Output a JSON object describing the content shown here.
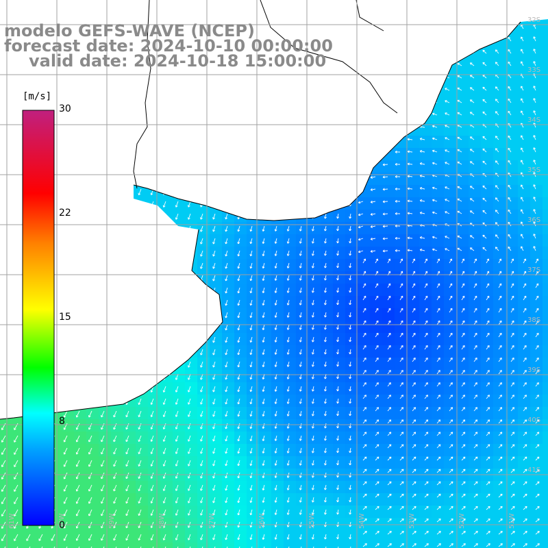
{
  "title": {
    "line1": "modelo GEFS-WAVE (NCEP)",
    "line2": "forecast date: 2024-10-10 00:00:00",
    "line3": "valid date: 2024-10-18 15:00:00"
  },
  "colorbar": {
    "unit": "[m/s]",
    "ticks": [
      "30",
      "22",
      "15",
      "8",
      "0"
    ],
    "tick_values": [
      30,
      22,
      15,
      8,
      0
    ],
    "colors": [
      "#0000ff",
      "#00a0ff",
      "#00ffff",
      "#00ff00",
      "#ffff00",
      "#ff8000",
      "#ff0000",
      "#c0207f"
    ]
  },
  "map": {
    "longitude_labels": [
      "61W",
      "60W",
      "59W",
      "58W",
      "57W",
      "56W",
      "55W",
      "54W",
      "53W",
      "52W",
      "51W"
    ],
    "latitude_labels": [
      "32S",
      "33S",
      "34S",
      "35S",
      "36S",
      "37S",
      "38S",
      "39S",
      "40S",
      "41S"
    ],
    "land_color": "#ffffff",
    "grid_color": "#a0a0a0",
    "arrow_color": "#ffffff"
  }
}
